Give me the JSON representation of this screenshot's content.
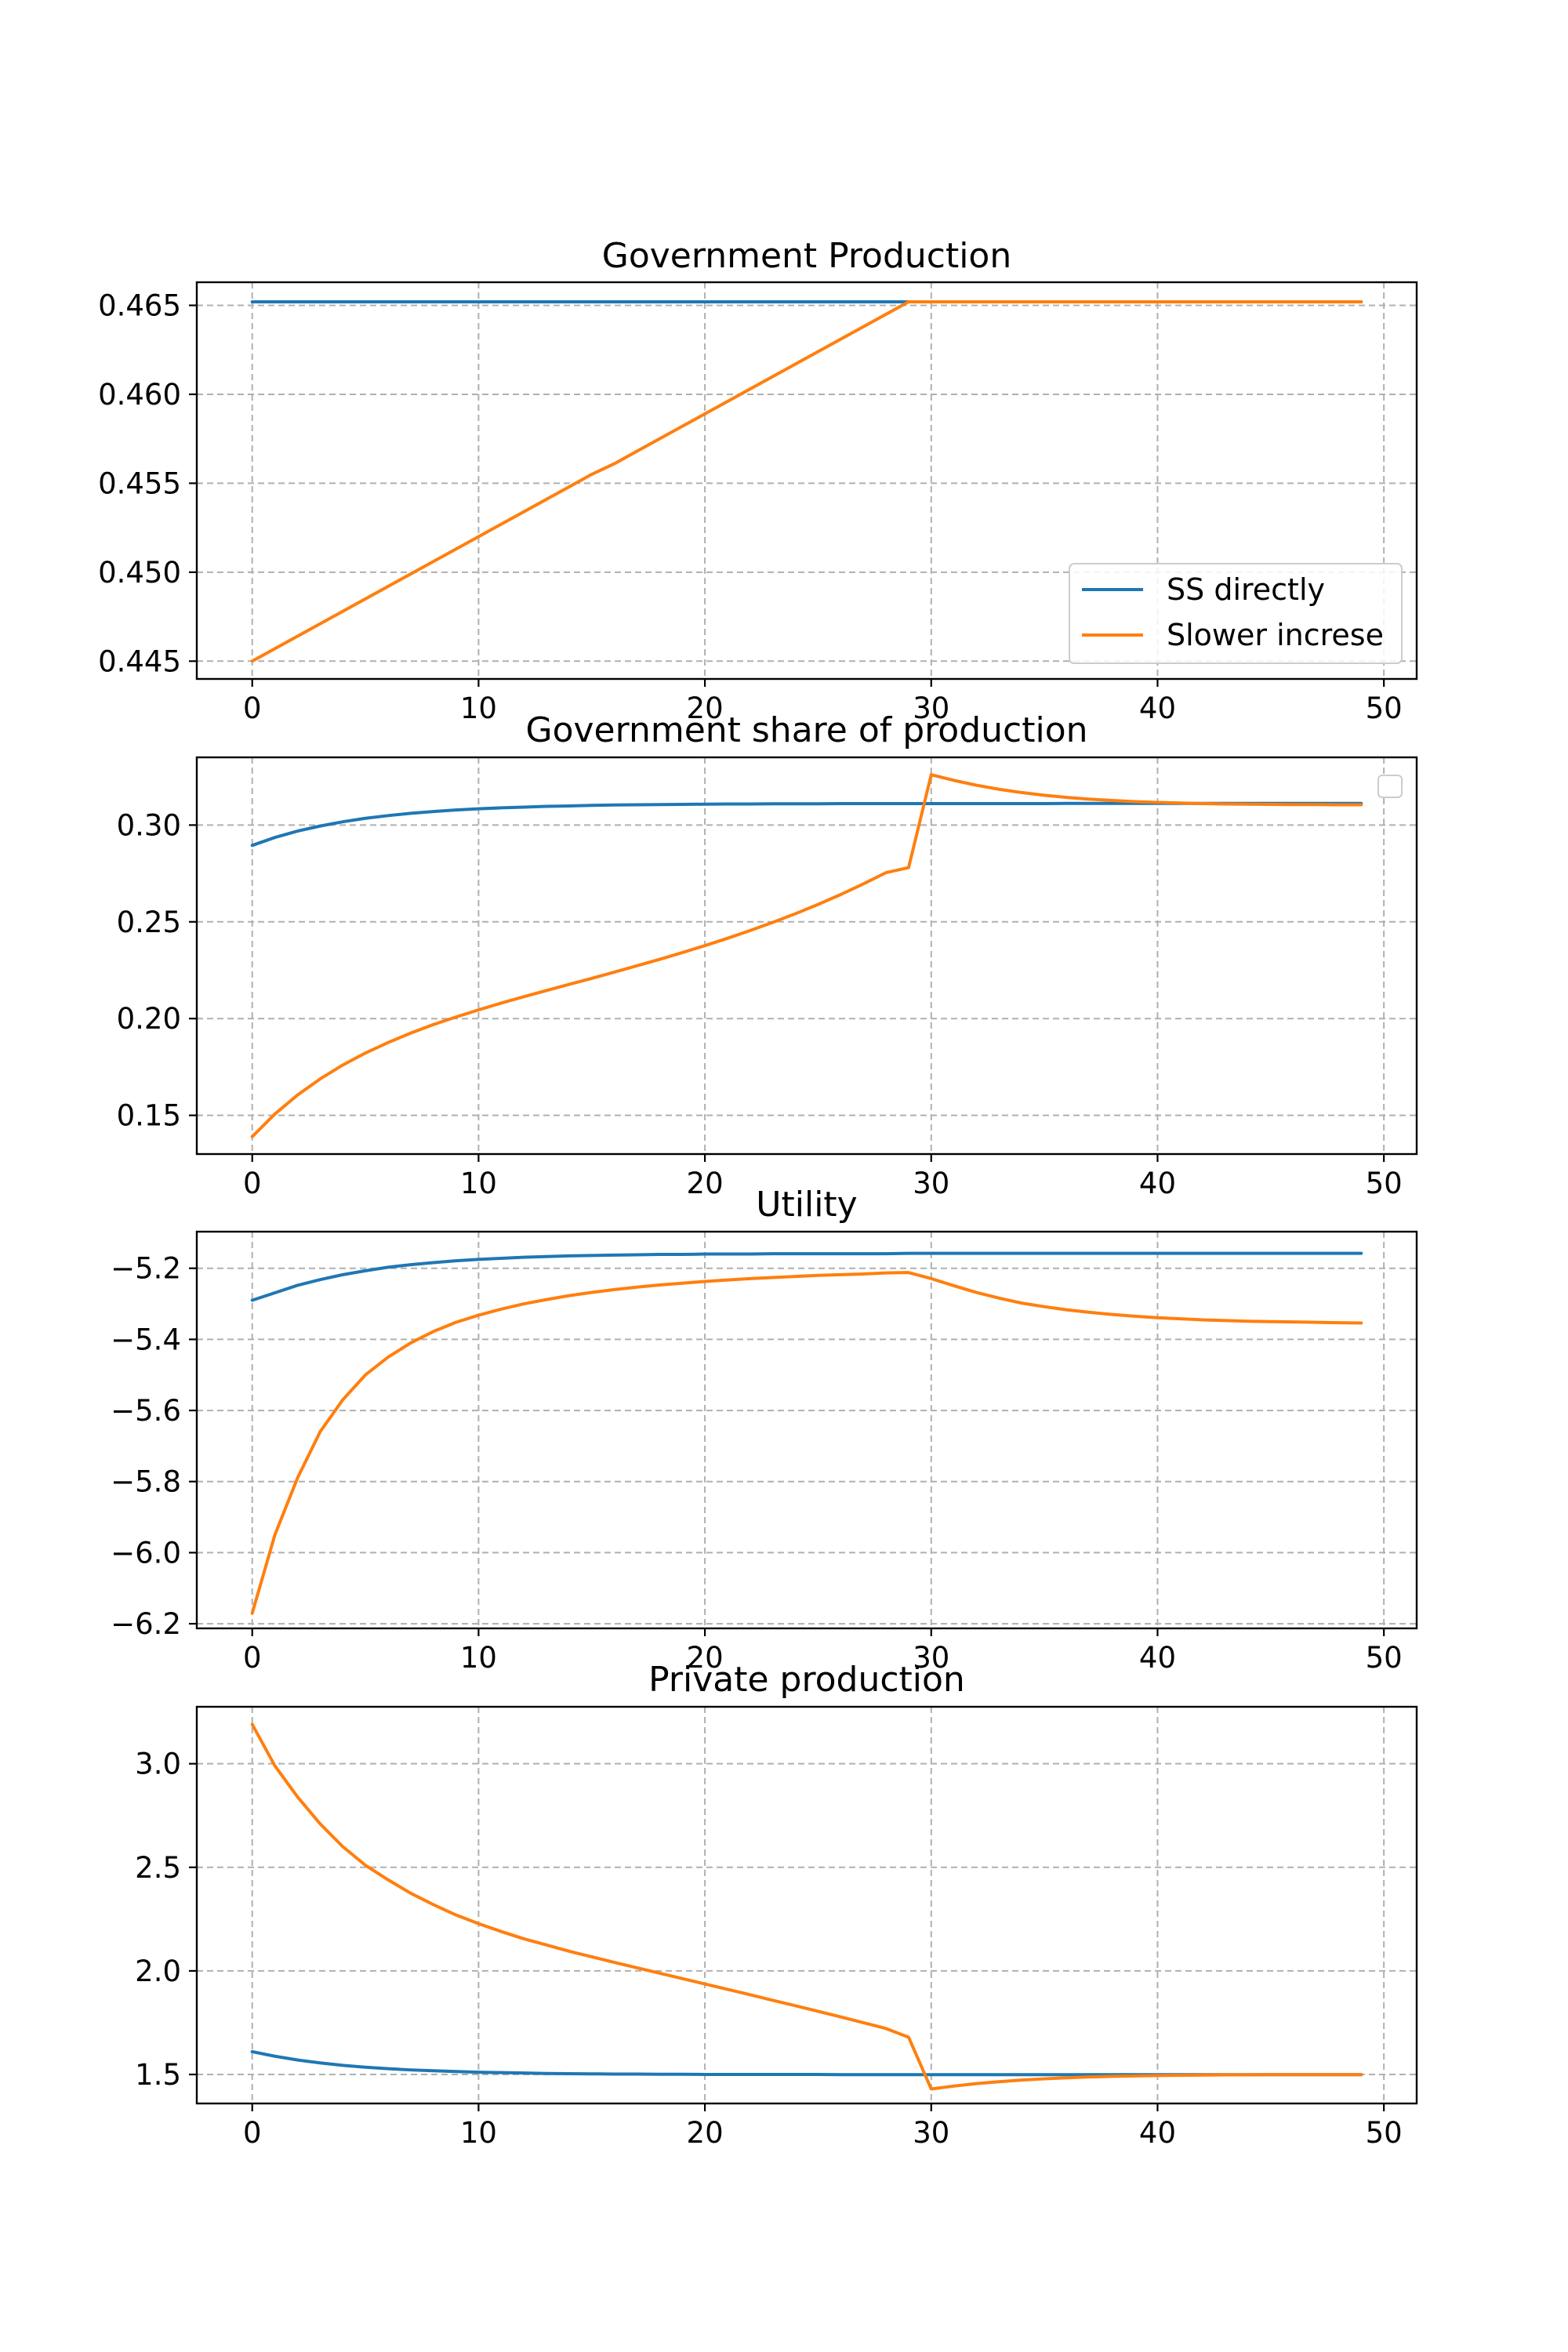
{
  "chart_data": [
    {
      "type": "line",
      "title": "Government Production",
      "xlabel": "",
      "ylabel": "",
      "xlim": [
        -2.45,
        51.45
      ],
      "ylim": [
        0.444,
        0.4663
      ],
      "xticks": [
        0,
        10,
        20,
        30,
        40,
        50
      ],
      "xtick_labels": [
        "0",
        "10",
        "20",
        "30",
        "40",
        "50"
      ],
      "yticks": [
        0.445,
        0.45,
        0.455,
        0.46,
        0.465
      ],
      "ytick_labels": [
        "0.445",
        "0.450",
        "0.455",
        "0.460",
        "0.465"
      ],
      "grid": true,
      "legend": "lower-right",
      "series": [
        {
          "name": "SS directly",
          "color": "#1f77b4",
          "x_start": 0,
          "x_step": 1,
          "values": [
            0.4652,
            0.4652,
            0.4652,
            0.4652,
            0.4652,
            0.4652,
            0.4652,
            0.4652,
            0.4652,
            0.4652,
            0.4652,
            0.4652,
            0.4652,
            0.4652,
            0.4652,
            0.4652,
            0.4652,
            0.4652,
            0.4652,
            0.4652,
            0.4652,
            0.4652,
            0.4652,
            0.4652,
            0.4652,
            0.4652,
            0.4652,
            0.4652,
            0.4652,
            0.4652,
            0.4652,
            0.4652,
            0.4652,
            0.4652,
            0.4652,
            0.4652,
            0.4652,
            0.4652,
            0.4652,
            0.4652,
            0.4652,
            0.4652,
            0.4652,
            0.4652,
            0.4652,
            0.4652,
            0.4652,
            0.4652,
            0.4652,
            0.4652
          ]
        },
        {
          "name": "Slower increse",
          "color": "#ff7f0e",
          "x_start": 0,
          "x_step": 1,
          "values": [
            0.445,
            0.4457,
            0.4464,
            0.4471,
            0.4478,
            0.4485,
            0.4492,
            0.4499,
            0.4506,
            0.4513,
            0.452,
            0.4527,
            0.4534,
            0.4541,
            0.4548,
            0.4555,
            0.4561,
            0.4568,
            0.4575,
            0.4582,
            0.4589,
            0.4596,
            0.4603,
            0.461,
            0.4617,
            0.4624,
            0.4631,
            0.4638,
            0.4645,
            0.4652,
            0.4652,
            0.4652,
            0.4652,
            0.4652,
            0.4652,
            0.4652,
            0.4652,
            0.4652,
            0.4652,
            0.4652,
            0.4652,
            0.4652,
            0.4652,
            0.4652,
            0.4652,
            0.4652,
            0.4652,
            0.4652,
            0.4652,
            0.4652
          ]
        }
      ]
    },
    {
      "type": "line",
      "title": "Government share of production",
      "xlabel": "",
      "ylabel": "",
      "xlim": [
        -2.45,
        51.45
      ],
      "ylim": [
        0.13,
        0.335
      ],
      "xticks": [
        0,
        10,
        20,
        30,
        40,
        50
      ],
      "xtick_labels": [
        "0",
        "10",
        "20",
        "30",
        "40",
        "50"
      ],
      "yticks": [
        0.15,
        0.2,
        0.25,
        0.3
      ],
      "ytick_labels": [
        "0.15",
        "0.20",
        "0.25",
        "0.30"
      ],
      "grid": true,
      "legend": "upper-right (empty)",
      "series": [
        {
          "color": "#1f77b4",
          "x_start": 0,
          "x_step": 1,
          "values": [
            0.2895,
            0.2936,
            0.2969,
            0.2995,
            0.3017,
            0.3035,
            0.3049,
            0.3061,
            0.307,
            0.3078,
            0.3084,
            0.3089,
            0.3093,
            0.3097,
            0.3099,
            0.3102,
            0.3104,
            0.3105,
            0.3106,
            0.3107,
            0.3108,
            0.3109,
            0.3109,
            0.311,
            0.311,
            0.311,
            0.3111,
            0.3111,
            0.3111,
            0.3111,
            0.3111,
            0.3111,
            0.3111,
            0.3111,
            0.3111,
            0.3111,
            0.3112,
            0.3112,
            0.3112,
            0.3112,
            0.3112,
            0.3112,
            0.3112,
            0.3112,
            0.3112,
            0.3112,
            0.3112,
            0.3112,
            0.3112,
            0.3112
          ]
        },
        {
          "color": "#ff7f0e",
          "x_start": 0,
          "x_step": 1,
          "values": [
            0.139,
            0.1507,
            0.1605,
            0.1688,
            0.176,
            0.1822,
            0.1876,
            0.1925,
            0.1969,
            0.2008,
            0.2045,
            0.208,
            0.2113,
            0.2145,
            0.2177,
            0.2208,
            0.224,
            0.2273,
            0.2306,
            0.2341,
            0.2377,
            0.2415,
            0.2455,
            0.2497,
            0.2542,
            0.259,
            0.2641,
            0.2696,
            0.2754,
            0.278,
            0.326,
            0.3231,
            0.3206,
            0.3185,
            0.3168,
            0.3154,
            0.3143,
            0.3134,
            0.3127,
            0.3121,
            0.3117,
            0.3114,
            0.3111,
            0.3109,
            0.3108,
            0.3107,
            0.3106,
            0.3106,
            0.3105,
            0.3105
          ]
        }
      ]
    },
    {
      "type": "line",
      "title": "Utility",
      "xlabel": "",
      "ylabel": "",
      "xlim": [
        -2.45,
        51.45
      ],
      "ylim": [
        -6.213,
        -5.097
      ],
      "xticks": [
        0,
        10,
        20,
        30,
        40,
        50
      ],
      "xtick_labels": [
        "0",
        "10",
        "20",
        "30",
        "40",
        "50"
      ],
      "yticks": [
        -6.2,
        -6.0,
        -5.8,
        -5.6,
        -5.4,
        -5.2
      ],
      "ytick_labels": [
        "−6.2",
        "−6.0",
        "−5.8",
        "−5.6",
        "−5.4",
        "−5.2"
      ],
      "grid": true,
      "series": [
        {
          "color": "#1f77b4",
          "x_start": 0,
          "x_step": 1,
          "values": [
            -5.29,
            -5.269,
            -5.248,
            -5.232,
            -5.218,
            -5.207,
            -5.197,
            -5.19,
            -5.184,
            -5.179,
            -5.175,
            -5.172,
            -5.169,
            -5.167,
            -5.165,
            -5.164,
            -5.163,
            -5.162,
            -5.161,
            -5.161,
            -5.16,
            -5.16,
            -5.16,
            -5.159,
            -5.159,
            -5.159,
            -5.159,
            -5.159,
            -5.159,
            -5.158,
            -5.158,
            -5.158,
            -5.158,
            -5.158,
            -5.158,
            -5.158,
            -5.158,
            -5.158,
            -5.158,
            -5.158,
            -5.158,
            -5.158,
            -5.158,
            -5.158,
            -5.158,
            -5.158,
            -5.158,
            -5.158,
            -5.158,
            -5.158
          ]
        },
        {
          "color": "#ff7f0e",
          "x_start": 0,
          "x_step": 1,
          "values": [
            -6.17,
            -5.95,
            -5.79,
            -5.66,
            -5.57,
            -5.5,
            -5.45,
            -5.41,
            -5.378,
            -5.352,
            -5.332,
            -5.315,
            -5.3,
            -5.288,
            -5.277,
            -5.268,
            -5.26,
            -5.253,
            -5.247,
            -5.242,
            -5.237,
            -5.233,
            -5.229,
            -5.226,
            -5.223,
            -5.22,
            -5.218,
            -5.216,
            -5.213,
            -5.212,
            -5.229,
            -5.249,
            -5.268,
            -5.284,
            -5.298,
            -5.308,
            -5.317,
            -5.324,
            -5.33,
            -5.335,
            -5.339,
            -5.342,
            -5.345,
            -5.347,
            -5.349,
            -5.35,
            -5.351,
            -5.352,
            -5.353,
            -5.354
          ]
        }
      ]
    },
    {
      "type": "line",
      "title": "Private production",
      "xlabel": "",
      "ylabel": "",
      "xlim": [
        -2.45,
        51.45
      ],
      "ylim": [
        1.36,
        3.275
      ],
      "xticks": [
        0,
        10,
        20,
        30,
        40,
        50
      ],
      "xtick_labels": [
        "0",
        "10",
        "20",
        "30",
        "40",
        "50"
      ],
      "yticks": [
        1.5,
        2.0,
        2.5,
        3.0
      ],
      "ytick_labels": [
        "1.5",
        "2.0",
        "2.5",
        "3.0"
      ],
      "grid": true,
      "series": [
        {
          "color": "#1f77b4",
          "x_start": 0,
          "x_step": 1,
          "values": [
            1.61,
            1.588,
            1.57,
            1.556,
            1.544,
            1.535,
            1.528,
            1.522,
            1.518,
            1.514,
            1.511,
            1.509,
            1.507,
            1.505,
            1.504,
            1.503,
            1.502,
            1.502,
            1.501,
            1.501,
            1.5,
            1.5,
            1.5,
            1.5,
            1.5,
            1.5,
            1.499,
            1.499,
            1.499,
            1.499,
            1.499,
            1.499,
            1.499,
            1.499,
            1.499,
            1.499,
            1.499,
            1.499,
            1.499,
            1.499,
            1.499,
            1.499,
            1.499,
            1.499,
            1.499,
            1.499,
            1.499,
            1.499,
            1.499,
            1.499
          ]
        },
        {
          "color": "#ff7f0e",
          "x_start": 0,
          "x_step": 1,
          "values": [
            3.19,
            2.99,
            2.84,
            2.71,
            2.6,
            2.51,
            2.44,
            2.375,
            2.32,
            2.27,
            2.228,
            2.19,
            2.155,
            2.125,
            2.095,
            2.068,
            2.041,
            2.015,
            1.989,
            1.963,
            1.937,
            1.911,
            1.885,
            1.858,
            1.832,
            1.805,
            1.778,
            1.75,
            1.722,
            1.68,
            1.43,
            1.444,
            1.456,
            1.465,
            1.473,
            1.479,
            1.484,
            1.488,
            1.491,
            1.493,
            1.495,
            1.496,
            1.497,
            1.498,
            1.498,
            1.499,
            1.499,
            1.499,
            1.499,
            1.499
          ]
        }
      ]
    }
  ]
}
